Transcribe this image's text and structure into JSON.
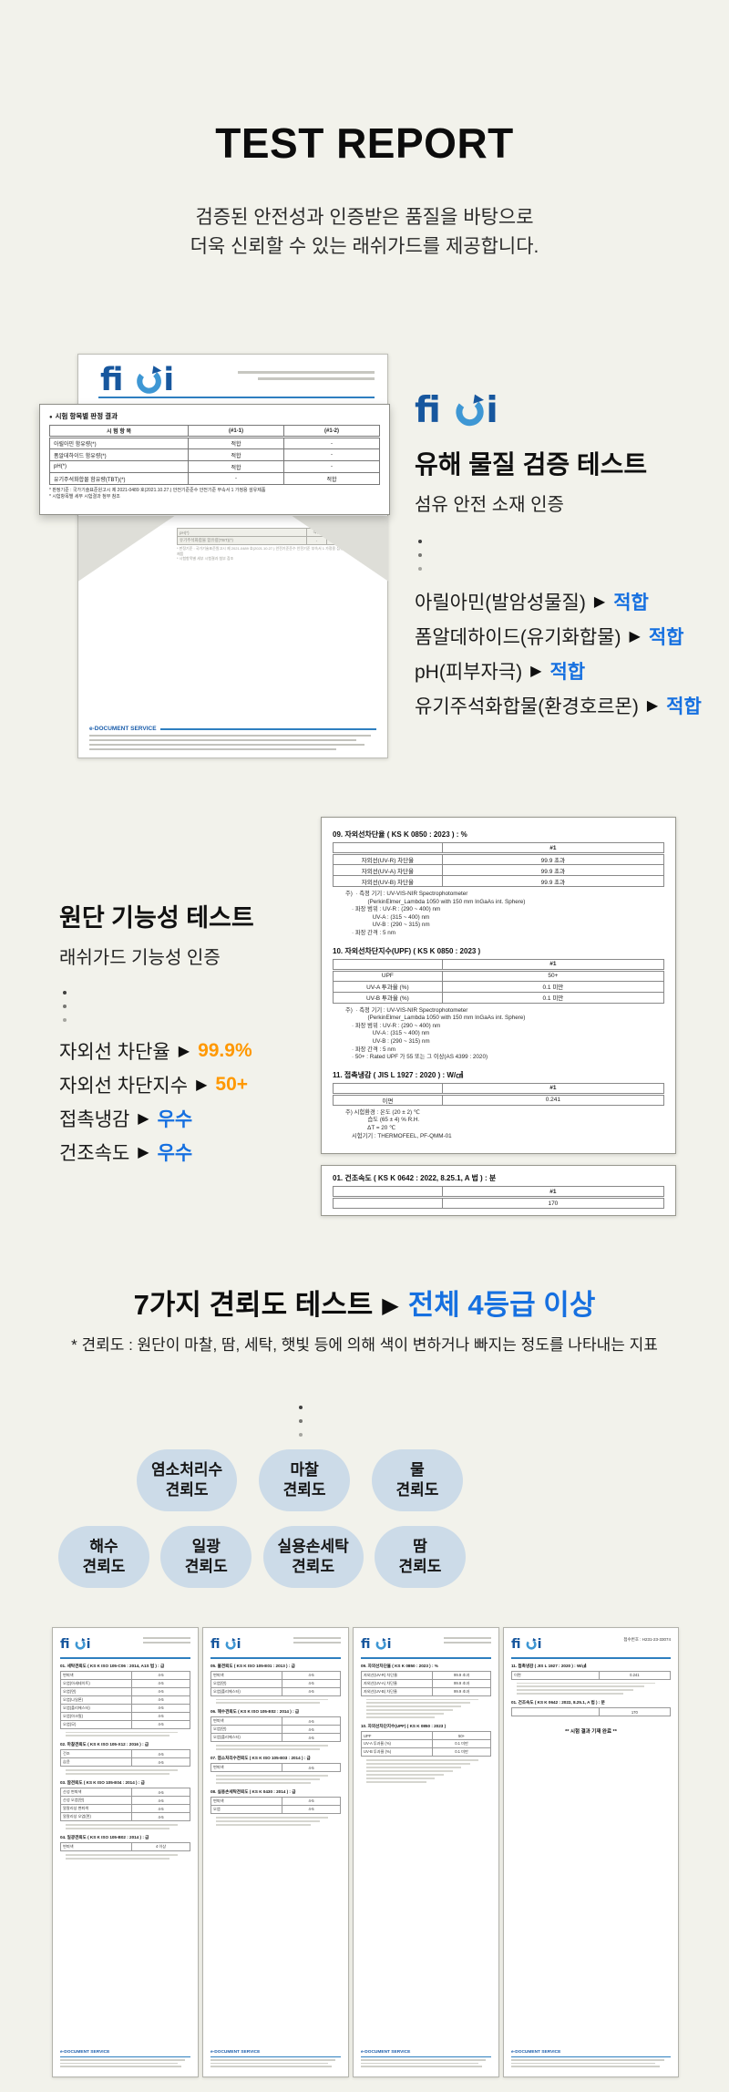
{
  "page": {
    "bg": "#F2F2EB",
    "title": "TEST REPORT",
    "subtitle": [
      "검증된 안전성과 인증받은 품질을 바탕으로",
      "더욱 신뢰할 수 있는 래쉬가드를 제공합니다."
    ]
  },
  "colors": {
    "accent_blue": "#1670E0",
    "accent_orange": "#FF9800",
    "brand_blue": "#17579E",
    "brand_light_blue": "#3E97D4",
    "pill_bg": "#CCDBE8"
  },
  "brand": {
    "logo_text": "fiti"
  },
  "edoc_label": "e-DOCUMENT SERVICE",
  "hazard_section": {
    "heading": "유해 물질 검증 테스트",
    "subheading": "섬유 안전 소재 인증",
    "results": [
      {
        "label": "아릴아민(발암성물질)",
        "value": "적합",
        "color": "blue"
      },
      {
        "label": "폼알데하이드(유기화합물)",
        "value": "적합",
        "color": "blue"
      },
      {
        "label": "pH(피부자극)",
        "value": "적합",
        "color": "blue"
      },
      {
        "label": "유기주석화합물(환경호르몬)",
        "value": "적합",
        "color": "blue"
      }
    ],
    "certificate": {
      "receipt_no": "접수번호 : H231-23-33074",
      "result_title": "시험 항목별 판정 결과",
      "columns": [
        "시 험 항 목",
        "(#1-1)",
        "(#1-2)"
      ],
      "rows": [
        [
          "아릴아민 함유량(*)",
          "적합",
          "-"
        ],
        [
          "폼알데하이드 함유량(*)",
          "적합",
          "-"
        ],
        [
          "pH(*)",
          "적합",
          "-"
        ],
        [
          "유기주석화합물 함유량(TBT)(*)",
          "-",
          "적합"
        ]
      ],
      "footnotes": [
        "* 판정기준 : 국가기술표준원고시 제 2021-0489 호(2021.10.27.) 안전기준준수 안전기준 부속서 1 가정용 섬유제품",
        "* 시험항목별 세부 시험결과 첨부 참조"
      ]
    }
  },
  "fabric_section": {
    "heading": "원단 기능성 테스트",
    "subheading": "래쉬가드 기능성 인증",
    "results": [
      {
        "label": "자외선 차단율",
        "value": "99.9%",
        "color": "orange"
      },
      {
        "label": "자외선 차단지수",
        "value": "50+",
        "color": "orange"
      },
      {
        "label": "접촉냉감",
        "value": "우수",
        "color": "blue"
      },
      {
        "label": "건조속도",
        "value": "우수",
        "color": "blue"
      }
    ],
    "certificate": {
      "sections": [
        {
          "title": "09. 자외선차단율 ( KS K 0850 : 2023 ) : %",
          "col": "#1",
          "rows": [
            [
              "자외선(UV-R) 차단율",
              "99.9 초과"
            ],
            [
              "자외선(UV-A) 차단율",
              "99.9 초과"
            ],
            [
              "자외선(UV-B) 차단율",
              "99.9 초과"
            ]
          ],
          "notes": [
            "주)  · 측정 기기 : UV-VIS-NIR Spectrophotometer",
            "              (PerkinElmer_Lambda 1050 with 150 mm InGaAs int. Sphere)",
            "    · 파장 범위 : UV-R : (290 ~ 400) nm",
            "                 UV-A : (315 ~ 400) nm",
            "                 UV-B : (290 ~ 315) nm",
            "    · 파장 간격 : 5 nm"
          ]
        },
        {
          "title": "10. 자외선차단지수(UPF) ( KS K 0850 : 2023 )",
          "col": "#1",
          "rows": [
            [
              "UPF",
              "50+"
            ],
            [
              "UV-A 투과율 (%)",
              "0.1 미만"
            ],
            [
              "UV-B 투과율 (%)",
              "0.1 미만"
            ]
          ],
          "notes": [
            "주)  · 측정 기기 : UV-VIS-NIR Spectrophotometer",
            "              (PerkinElmer_Lambda 1050 with 150 mm InGaAs int. Sphere)",
            "    · 파장 범위 : UV-R : (290 ~ 400) nm",
            "                 UV-A : (315 ~ 400) nm",
            "                 UV-B : (290 ~ 315) nm",
            "    · 파장 간격 : 5 nm",
            "    · 50+ : Rated UPF 가 55 또는 그 이상(AS 4399 : 2020)"
          ]
        },
        {
          "title": "11. 접촉냉감 ( JIS L 1927 : 2020 ) : W/㎠",
          "col": "#1",
          "rows": [
            [
              "이면",
              "0.241"
            ]
          ],
          "notes": [
            "주) 시험환경 : 온도 (20 ± 2) ℃",
            "              습도 (65 ± 4) % R.H.",
            "              ΔT = 20 ℃",
            "    시험기기 : THERMOFEEL, PF-QMM-01"
          ]
        }
      ],
      "extra_box": {
        "title": "01. 건조속도 ( KS K 0642 : 2022, 8.25.1, A 법 ) : 분",
        "col": "#1",
        "rows": [
          [
            "",
            "170"
          ]
        ]
      }
    }
  },
  "fastness_section": {
    "heading": "7가지 견뢰도 테스트",
    "heading_highlight": "전체 4등급 이상",
    "note": "* 견뢰도 : 원단이 마찰, 땀, 세탁, 햇빛 등에 의해 색이 변하거나 빠지는 정도를 나타내는 지표",
    "pills_row1": [
      [
        "염소처리수",
        "견뢰도"
      ],
      [
        "마찰",
        "견뢰도"
      ],
      [
        "물",
        "견뢰도"
      ]
    ],
    "pills_row2": [
      [
        "해수",
        "견뢰도"
      ],
      [
        "일광",
        "견뢰도"
      ],
      [
        "실용손세탁",
        "견뢰도"
      ],
      [
        "땀",
        "견뢰도"
      ]
    ]
  },
  "reports_strip": {
    "docs": [
      {
        "receipt": "",
        "sections": [
          {
            "title": "01. 세탁견뢰도 ( KS K ISO 105-C06 : 2014, A1S 법 ) : 급",
            "rows": [
              [
                "변퇴색",
                "4-5"
              ],
              [
                "오염(아세테이트)",
                "4-5"
              ],
              [
                "오염(면)",
                "4-5"
              ],
              [
                "오염(나일론)",
                "4-5"
              ],
              [
                "오염(폴리에스터)",
                "4-5"
              ],
              [
                "오염(아크릴)",
                "4-5"
              ],
              [
                "오염(모)",
                "4-5"
              ]
            ],
            "bars": 2
          },
          {
            "title": "02. 마찰견뢰도 ( KS K ISO 105-X12 : 2016 ) : 급",
            "rows": [
              [
                "건조",
                "4-5"
              ],
              [
                "습윤",
                "4-5"
              ]
            ],
            "bars": 2
          },
          {
            "title": "03. 땀견뢰도 ( KS K ISO 105-E04 : 2014 ) : 급",
            "rows": [
              [
                "산성 변퇴색",
                "4-5"
              ],
              [
                "산성 오염(면)",
                "4-5"
              ],
              [
                "알칼리성 변퇴색",
                "4-5"
              ],
              [
                "알칼리성 오염(면)",
                "4-5"
              ]
            ],
            "bars": 2
          },
          {
            "title": "04. 일광견뢰도 ( KS K ISO 105-B02 : 2014 ) : 급",
            "rows": [
              [
                "변퇴색",
                "4 이상"
              ]
            ],
            "bars": 2
          }
        ]
      },
      {
        "receipt": "",
        "sections": [
          {
            "title": "05. 물견뢰도 ( KS K ISO 105-E01 : 2013 ) : 급",
            "rows": [
              [
                "변퇴색",
                "4-5"
              ],
              [
                "오염(면)",
                "4-5"
              ],
              [
                "오염(폴리에스터)",
                "4-5"
              ]
            ],
            "bars": 2
          },
          {
            "title": "06. 해수견뢰도 ( KS K ISO 105-E02 : 2014 ) : 급",
            "rows": [
              [
                "변퇴색",
                "4-5"
              ],
              [
                "오염(면)",
                "4-5"
              ],
              [
                "오염(폴리에스터)",
                "4-5"
              ]
            ],
            "bars": 2
          },
          {
            "title": "07. 염소처리수견뢰도 ( KS K ISO 105-E03 : 2014 ) : 급",
            "rows": [
              [
                "변퇴색",
                "4-5"
              ]
            ],
            "bars": 3
          },
          {
            "title": "08. 실용손세탁견뢰도 ( KS K 0430 : 2014 ) : 급",
            "rows": [
              [
                "변퇴색",
                "4-5"
              ],
              [
                "오염",
                "4-5"
              ]
            ],
            "bars": 3
          }
        ]
      },
      {
        "receipt": "",
        "sections": [
          {
            "title": "09. 자외선차단율 ( KS K 0850 : 2023 ) : %",
            "rows": [
              [
                "자외선(UV-R) 차단율",
                "99.9 초과"
              ],
              [
                "자외선(UV-A) 차단율",
                "99.9 초과"
              ],
              [
                "자외선(UV-B) 차단율",
                "99.9 초과"
              ]
            ],
            "bars": 6
          },
          {
            "title": "10. 자외선차단지수(UPF) ( KS K 0850 : 2023 )",
            "rows": [
              [
                "UPF",
                "50+"
              ],
              [
                "UV-A 투과율 (%)",
                "0.1 미만"
              ],
              [
                "UV-B 투과율 (%)",
                "0.1 미만"
              ]
            ],
            "bars": 7
          }
        ]
      },
      {
        "receipt": "접수번호 : H231-23-33074",
        "sections": [
          {
            "title": "11. 접촉냉감 ( JIS L 1927 : 2020 ) : W/㎠",
            "rows": [
              [
                "이면",
                "0.241"
              ]
            ],
            "bars": 4
          },
          {
            "title": "01. 건조속도 ( KS K 0642 : 2022, 8.25.1, A 법 ) : 분",
            "rows": [
              [
                "",
                "170"
              ]
            ],
            "bars": 0
          },
          {
            "title": "** 시험 결과 기재 완료 **",
            "rows": [],
            "bars": 0,
            "center": true
          }
        ]
      }
    ]
  }
}
